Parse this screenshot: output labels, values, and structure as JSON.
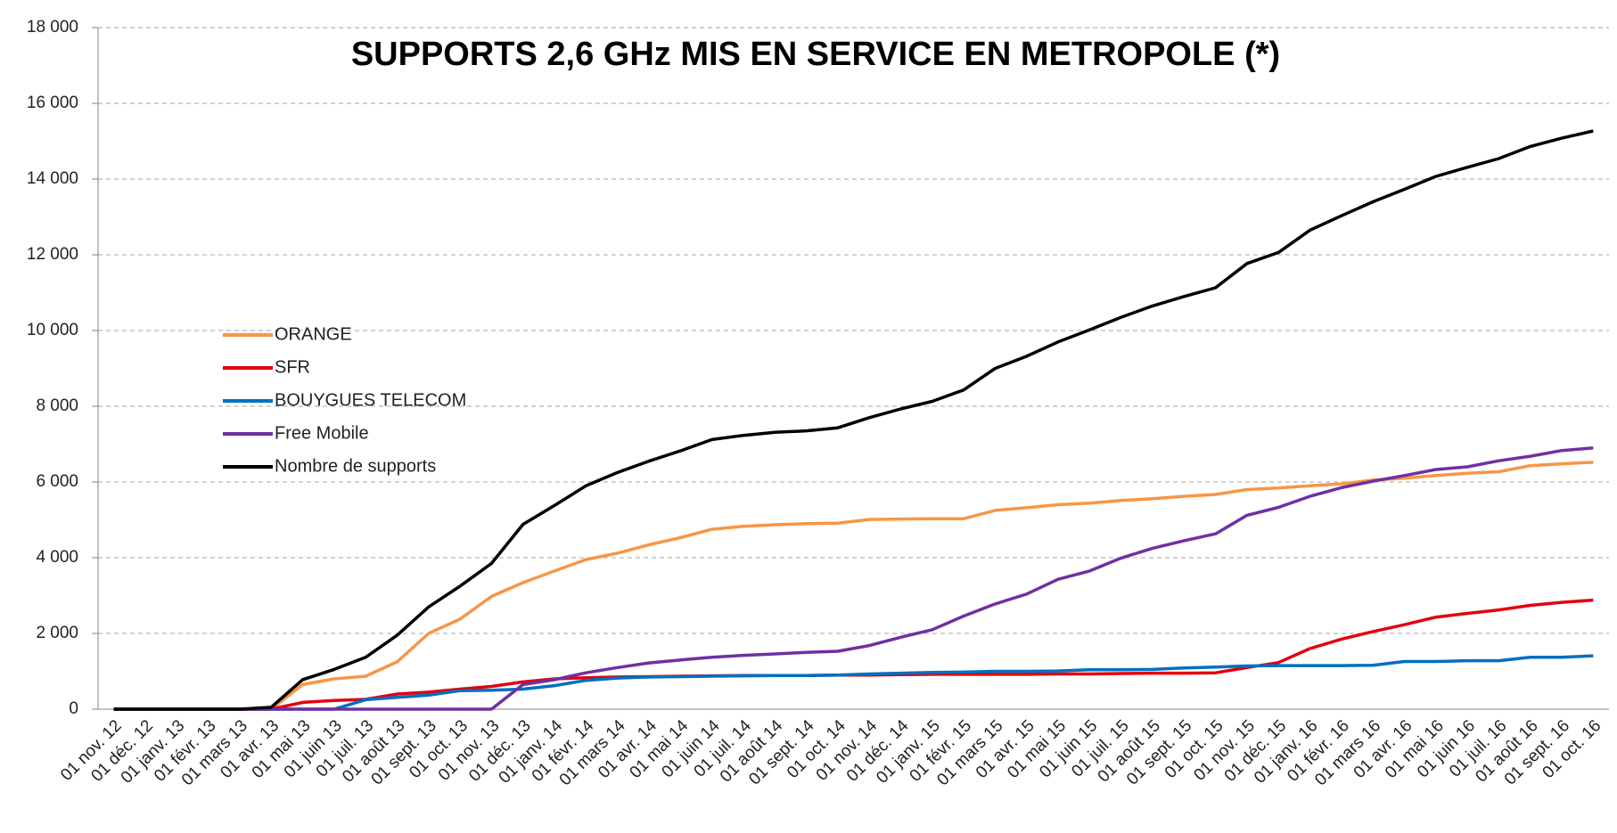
{
  "chart_data": {
    "type": "line",
    "title": "SUPPORTS 2,6 GHz MIS EN SERVICE EN METROPOLE (*)",
    "categories": [
      "01 nov. 12",
      "01 déc. 12",
      "01 janv. 13",
      "01 févr. 13",
      "01 mars 13",
      "01 avr. 13",
      "01 mai 13",
      "01 juin 13",
      "01 juil. 13",
      "01 août 13",
      "01 sept. 13",
      "01 oct. 13",
      "01 nov. 13",
      "01 déc. 13",
      "01 janv. 14",
      "01 févr. 14",
      "01 mars 14",
      "01 avr. 14",
      "01 mai 14",
      "01 juin 14",
      "01 juil. 14",
      "01 août 14",
      "01 sept. 14",
      "01 oct. 14",
      "01 nov. 14",
      "01 déc. 14",
      "01 janv. 15",
      "01 févr. 15",
      "01 mars 15",
      "01 avr. 15",
      "01 mai 15",
      "01 juin 15",
      "01 juil. 15",
      "01 août 15",
      "01 sept. 15",
      "01 oct. 15",
      "01 nov. 15",
      "01 déc. 15",
      "01 janv. 16",
      "01 févr. 16",
      "01 mars 16",
      "01 avr. 16",
      "01 mai 16",
      "01 juin 16",
      "01 juil. 16",
      "01 août 16",
      "01 sept. 16",
      "01 oct. 16"
    ],
    "series": [
      {
        "name": "ORANGE",
        "color": "#f79646",
        "values": [
          0,
          0,
          0,
          0,
          0,
          0,
          650,
          800,
          870,
          1250,
          2000,
          2380,
          2980,
          3340,
          3650,
          3950,
          4120,
          4340,
          4530,
          4750,
          4830,
          4870,
          4900,
          4910,
          5010,
          5020,
          5030,
          5030,
          5250,
          5320,
          5400,
          5440,
          5510,
          5560,
          5620,
          5670,
          5800,
          5840,
          5900,
          5950,
          6050,
          6100,
          6170,
          6230,
          6270,
          6430,
          6480,
          6520
        ]
      },
      {
        "name": "SFR",
        "color": "#e3000f",
        "values": [
          0,
          0,
          0,
          0,
          0,
          0,
          180,
          230,
          260,
          400,
          450,
          530,
          600,
          720,
          800,
          830,
          850,
          860,
          870,
          880,
          890,
          890,
          890,
          900,
          900,
          910,
          920,
          920,
          920,
          920,
          930,
          930,
          940,
          950,
          950,
          960,
          1100,
          1230,
          1600,
          1850,
          2050,
          2230,
          2430,
          2530,
          2620,
          2740,
          2820,
          2880
        ]
      },
      {
        "name": "BOUYGUES TELECOM",
        "color": "#0070c0",
        "values": [
          0,
          0,
          0,
          0,
          0,
          0,
          0,
          0,
          250,
          310,
          370,
          490,
          500,
          530,
          620,
          760,
          820,
          850,
          860,
          870,
          880,
          890,
          890,
          900,
          930,
          950,
          970,
          980,
          1000,
          1000,
          1010,
          1040,
          1040,
          1050,
          1090,
          1110,
          1140,
          1150,
          1150,
          1150,
          1160,
          1260,
          1260,
          1280,
          1280,
          1370,
          1370,
          1410
        ]
      },
      {
        "name": "Free Mobile",
        "color": "#7030a0",
        "values": [
          0,
          0,
          0,
          0,
          0,
          0,
          0,
          0,
          0,
          0,
          0,
          0,
          0,
          650,
          780,
          960,
          1100,
          1220,
          1300,
          1370,
          1420,
          1460,
          1500,
          1530,
          1680,
          1900,
          2100,
          2460,
          2780,
          3040,
          3430,
          3650,
          3990,
          4250,
          4450,
          4630,
          5120,
          5330,
          5620,
          5850,
          6020,
          6170,
          6330,
          6400,
          6560,
          6680,
          6830,
          6900
        ]
      },
      {
        "name": "Nombre de supports",
        "color": "#000000",
        "values": [
          0,
          0,
          0,
          0,
          0,
          50,
          780,
          1050,
          1370,
          1950,
          2700,
          3250,
          3850,
          4880,
          5380,
          5900,
          6250,
          6550,
          6820,
          7120,
          7230,
          7310,
          7350,
          7430,
          7700,
          7930,
          8130,
          8430,
          9000,
          9320,
          9700,
          10020,
          10350,
          10650,
          10900,
          11130,
          11770,
          12060,
          12650,
          13030,
          13400,
          13730,
          14070,
          14310,
          14540,
          14860,
          15080,
          15270
        ]
      }
    ],
    "ylim": [
      0,
      18000
    ],
    "yticks": [
      0,
      {
        "value": 2000,
        "label": "2 000"
      },
      {
        "value": 4000,
        "label": "4 000"
      },
      {
        "value": 6000,
        "label": "6 000"
      },
      {
        "value": 8000,
        "label": "8 000"
      },
      {
        "value": 10000,
        "label": "10 000"
      },
      {
        "value": 12000,
        "label": "12 000"
      },
      {
        "value": 14000,
        "label": "14 000"
      },
      {
        "value": 16000,
        "label": "16 000"
      },
      {
        "value": 18000,
        "label": "18 000"
      }
    ],
    "grid": true,
    "legend": "left"
  }
}
